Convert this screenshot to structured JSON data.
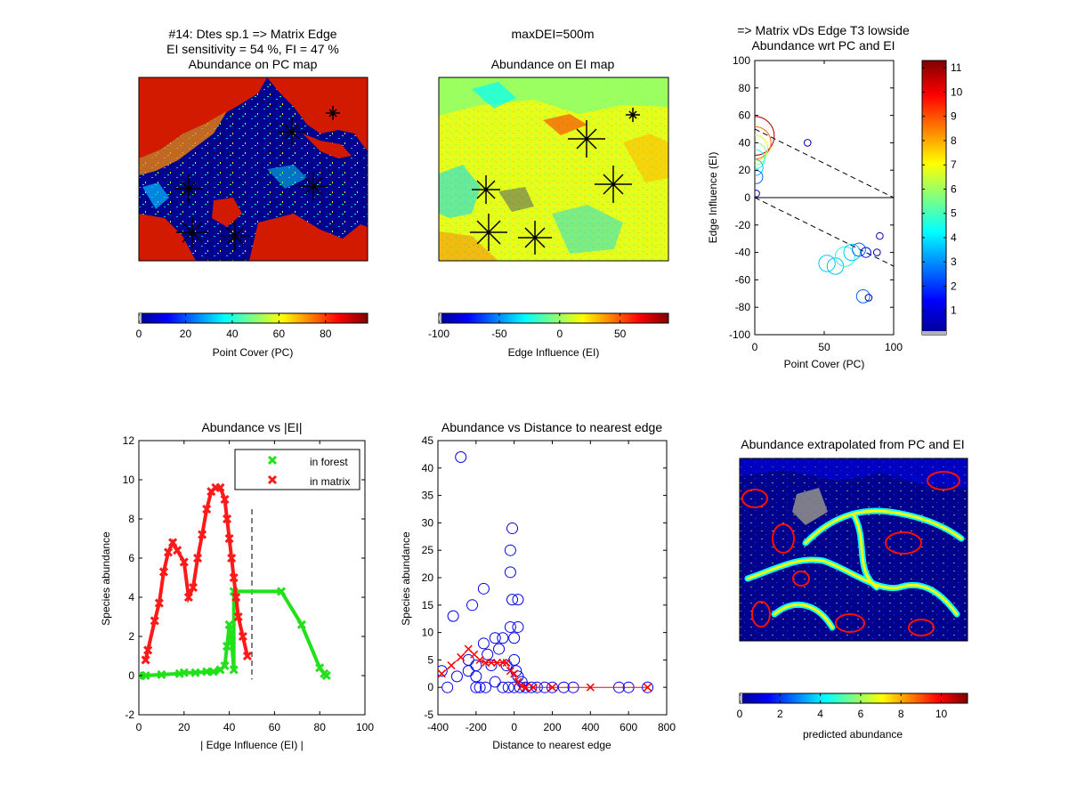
{
  "header": {
    "title_line1": "#14: Dtes sp.1 => Matrix Edge",
    "title_line2": "EI sensitivity = 54 %, FI = 47 %",
    "middle_title": "maxDEI=500m",
    "right_title": "=> Matrix vDs Edge T3 lowside"
  },
  "colors": {
    "map_blue": "#00008f",
    "map_red": "#d11a00",
    "forest_green": "#22e01a",
    "matrix_red": "#ff1a1a",
    "distance_blue": "#0000ee",
    "distance_red": "#ff0000"
  },
  "chart_data": [
    {
      "id": "pc_map",
      "type": "heatmap",
      "title": "Abundance on PC map",
      "colorbar": {
        "label": "Point Cover (PC)",
        "ticks": [
          "0",
          "20",
          "40",
          "60",
          "80"
        ],
        "range": [
          0,
          98
        ]
      }
    },
    {
      "id": "ei_map",
      "type": "heatmap",
      "title": "Abundance on EI map",
      "colorbar": {
        "label": "Edge Influence (EI)",
        "ticks": [
          "-100",
          "-50",
          "0",
          "50"
        ],
        "range": [
          -100,
          90
        ]
      }
    },
    {
      "id": "pc_ei_scatter",
      "type": "scatter",
      "title": "Abundance wrt PC and EI",
      "xlabel": "Point Cover (PC)",
      "ylabel": "Edge Influence (EI)",
      "xlim": [
        0,
        100
      ],
      "ylim": [
        -100,
        100
      ],
      "xticks": [
        "0",
        "50",
        "100"
      ],
      "yticks": [
        "100",
        "80",
        "60",
        "40",
        "20",
        "0",
        "-20",
        "-40",
        "-60",
        "-80",
        "-100"
      ],
      "colorbar_ticks": [
        "11",
        "10",
        "9",
        "8",
        "7",
        "6",
        "5",
        "4",
        "3",
        "2",
        "1"
      ],
      "points": [
        {
          "x": 0,
          "y": 45,
          "a": 11
        },
        {
          "x": 0,
          "y": 40,
          "a": 9
        },
        {
          "x": 0,
          "y": 36,
          "a": 7
        },
        {
          "x": 0,
          "y": 32,
          "a": 6
        },
        {
          "x": 0,
          "y": 28,
          "a": 5
        },
        {
          "x": 0,
          "y": 22,
          "a": 4
        },
        {
          "x": 1,
          "y": 15,
          "a": 3
        },
        {
          "x": 1,
          "y": 3,
          "a": 1
        },
        {
          "x": 38,
          "y": 40,
          "a": 1
        },
        {
          "x": 52,
          "y": -48,
          "a": 4
        },
        {
          "x": 58,
          "y": -50,
          "a": 4
        },
        {
          "x": 65,
          "y": -43,
          "a": 5
        },
        {
          "x": 70,
          "y": -40,
          "a": 4
        },
        {
          "x": 75,
          "y": -38,
          "a": 3
        },
        {
          "x": 80,
          "y": -40,
          "a": 2
        },
        {
          "x": 78,
          "y": -72,
          "a": 3
        },
        {
          "x": 82,
          "y": -73,
          "a": 1
        },
        {
          "x": 88,
          "y": -40,
          "a": 1
        },
        {
          "x": 90,
          "y": -28,
          "a": 1
        }
      ]
    },
    {
      "id": "abundance_vs_ei",
      "type": "line",
      "title": "Abundance vs |EI|",
      "xlabel": "| Edge Influence (EI) |",
      "ylabel": "Species abundance",
      "xlim": [
        0,
        100
      ],
      "ylim": [
        -2,
        12
      ],
      "xticks": [
        "0",
        "20",
        "40",
        "60",
        "80",
        "100"
      ],
      "yticks": [
        "12",
        "10",
        "8",
        "6",
        "4",
        "2",
        "0",
        "-2"
      ],
      "vline_x": 50,
      "legend": {
        "placement": "top-right",
        "entries": [
          "in forest",
          "in matrix"
        ]
      },
      "series": [
        {
          "name": "in forest",
          "x": [
            0,
            1,
            3,
            10,
            18,
            20,
            25,
            30,
            33,
            36,
            38,
            39,
            40,
            41,
            42,
            42,
            63,
            72,
            80,
            82,
            83
          ],
          "y": [
            0,
            0,
            0,
            0.05,
            0.1,
            0.15,
            0.15,
            0.2,
            0.2,
            0.3,
            0.5,
            1.5,
            2.6,
            1.8,
            0.3,
            4.3,
            4.3,
            2.6,
            0.4,
            0.1,
            0
          ]
        },
        {
          "name": "in matrix",
          "x": [
            3,
            4,
            7,
            9,
            11,
            13,
            15,
            17,
            20,
            22,
            24,
            26,
            28,
            30,
            32,
            34,
            36,
            38,
            39,
            40,
            41,
            42,
            43,
            44,
            46,
            48
          ],
          "y": [
            0.8,
            1.3,
            2.8,
            3.7,
            5.3,
            6.3,
            6.8,
            6.4,
            5.8,
            4.0,
            4.5,
            6.0,
            7.2,
            8.5,
            9.4,
            9.6,
            9.6,
            9.0,
            8.0,
            7.0,
            6.0,
            5.0,
            4.0,
            3.0,
            2.0,
            1.0
          ]
        }
      ]
    },
    {
      "id": "abundance_vs_distance",
      "type": "scatter",
      "title": "Abundance vs Distance to nearest edge",
      "xlabel": "Distance to nearest edge",
      "ylabel": "Species abundance",
      "xlim": [
        -400,
        800
      ],
      "ylim": [
        -5,
        45
      ],
      "xticks": [
        "-400",
        "-200",
        "0",
        "200",
        "400",
        "600",
        "800"
      ],
      "yticks": [
        "45",
        "40",
        "35",
        "30",
        "25",
        "20",
        "15",
        "10",
        "5",
        "0",
        "-5"
      ],
      "circles": [
        [
          -280,
          42
        ],
        [
          -10,
          29
        ],
        [
          -20,
          25
        ],
        [
          -20,
          21
        ],
        [
          -160,
          18
        ],
        [
          -320,
          13
        ],
        [
          -220,
          15
        ],
        [
          -10,
          16
        ],
        [
          20,
          16
        ],
        [
          -380,
          3
        ],
        [
          -350,
          0
        ],
        [
          -300,
          2
        ],
        [
          -240,
          5
        ],
        [
          -240,
          3
        ],
        [
          -200,
          0
        ],
        [
          -200,
          4
        ],
        [
          -160,
          8
        ],
        [
          -140,
          6
        ],
        [
          -120,
          4
        ],
        [
          -100,
          9
        ],
        [
          -80,
          7
        ],
        [
          -60,
          9
        ],
        [
          -40,
          4
        ],
        [
          -20,
          11
        ],
        [
          0,
          9
        ],
        [
          20,
          11
        ],
        [
          0,
          5
        ],
        [
          10,
          3
        ],
        [
          20,
          2
        ],
        [
          30,
          0
        ],
        [
          60,
          0
        ],
        [
          90,
          0
        ],
        [
          120,
          0
        ],
        [
          160,
          0
        ],
        [
          200,
          0
        ],
        [
          260,
          0
        ],
        [
          310,
          0
        ],
        [
          550,
          0
        ],
        [
          600,
          0
        ],
        [
          700,
          0
        ],
        [
          -150,
          0
        ],
        [
          -100,
          1
        ],
        [
          -60,
          0
        ],
        [
          -30,
          0
        ],
        [
          0,
          0
        ],
        [
          40,
          1
        ],
        [
          -200,
          2
        ],
        [
          -180,
          0
        ]
      ],
      "line_x": [
        -380,
        -330,
        -280,
        -240,
        -210,
        -180,
        -150,
        -120,
        -90,
        -60,
        -40,
        -20,
        0,
        20,
        40,
        60,
        100,
        200,
        400,
        700
      ],
      "line_y": [
        2.5,
        4.0,
        5.5,
        7.0,
        6.0,
        5.0,
        4.5,
        4.5,
        4.5,
        4.5,
        4.5,
        3.0,
        2.5,
        1.0,
        0.2,
        0,
        0,
        0,
        0,
        0
      ]
    },
    {
      "id": "extrapolated_map",
      "type": "heatmap",
      "title": "Abundance extrapolated from PC and EI",
      "colorbar": {
        "label": "predicted abundance",
        "ticks": [
          "0",
          "2",
          "4",
          "6",
          "8",
          "10"
        ],
        "range": [
          0,
          11.3
        ]
      }
    }
  ]
}
